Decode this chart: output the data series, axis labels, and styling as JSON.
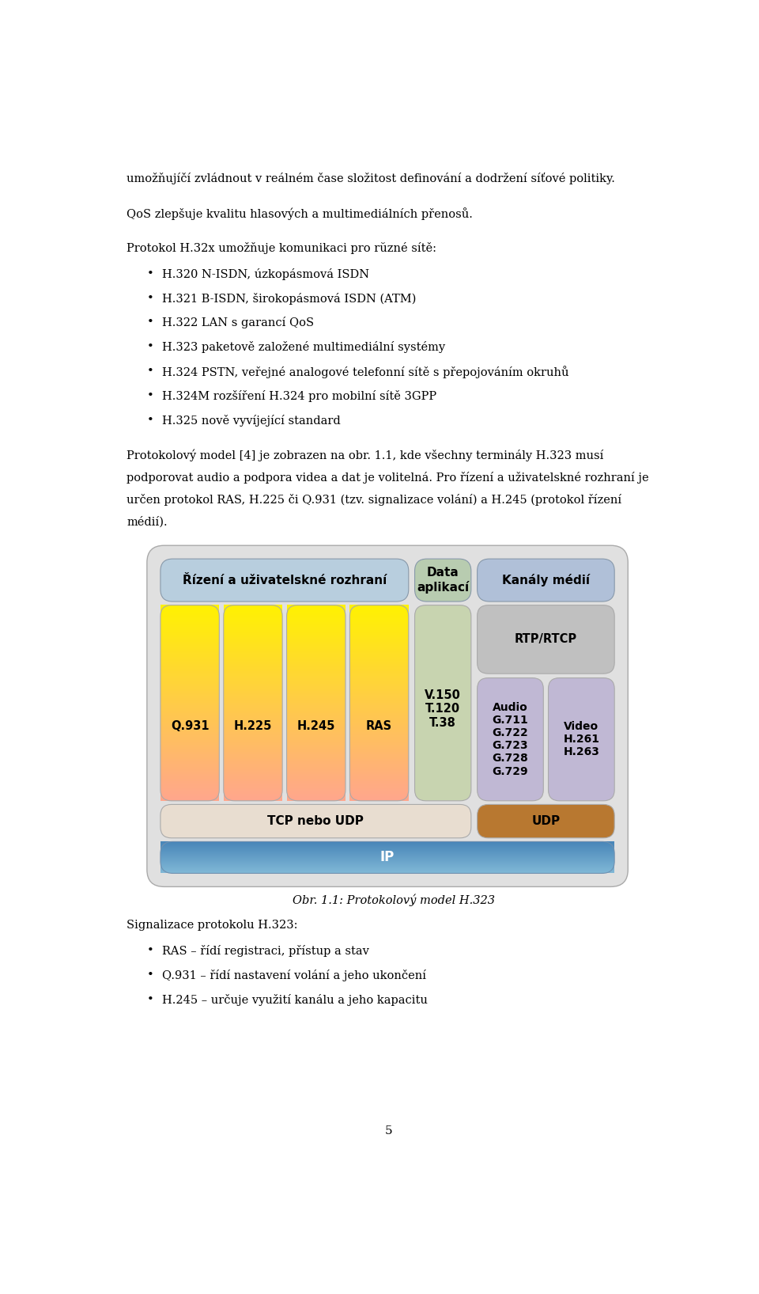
{
  "page_text_top": [
    "umožňujíčí zvládnout v reálném čase složitost definování a dodržení síťové politiky.",
    "QoS zlepšuje kvalitu hlasových a multimediálních přenosů.",
    "Protokol H.32x umožňuje komunikaci pro rŭzné sítě:"
  ],
  "bullet_items": [
    "H.320 N-ISDN, úzkopásmová ISDN",
    "H.321 B-ISDN, širokopásmová ISDN (ATM)",
    "H.322 LAN s garancí QoS",
    "H.323 paketově založené multimediální systémy",
    "H.324 PSTN, veřejné analogové telefonní sítě s přepojováním okruhů",
    "H.324M rozšíření H.324 pro mobilní sítě 3GPP",
    "H.325 nově vyvíjející standard"
  ],
  "para_middle_lines": [
    "Protokolový model [4] je zobrazen na obr. 1.1, kde všechny terminály H.323 musí",
    "podporovat audio a podpora videa a dat je volitelná. Pro řízení a uživatelskné rozhraní je",
    "určen protokol RAS, H.225 či Q.931 (tzv. signalizace volání) a H.245 (protokol řízení",
    "médií)."
  ],
  "caption": "Obr. 1.1: Protokolový model H.323",
  "page_text_bottom_title": "Signalizace protokolu H.323:",
  "page_text_bottom_bullets": [
    "RAS – řídí registraci, přístup a stav",
    "Q.931 – řídí nastavení volání a jeho ukončení",
    "H.245 – určuje využití kanálu a jeho kapacitu"
  ],
  "page_number": "5",
  "bg_color": "#ffffff",
  "text_color": "#000000",
  "diagram": {
    "header_left_bg": "#b8cede",
    "header_left_text": "Řízení a uživatelskné rozhraní",
    "header_mid_bg": "#b8ccb0",
    "header_mid_text": "Data\naplikací",
    "header_right_bg": "#b0c0d8",
    "header_right_text": "Kanály médií",
    "yellow_cols": [
      "Q.931",
      "H.225",
      "H.245",
      "RAS"
    ],
    "data_col_bg": "#c8d4b0",
    "data_col_text": "V.150\nT.120\nT.38",
    "rtp_bg": "#c0c0c0",
    "rtp_text": "RTP/RTCP",
    "audio_bg": "#c0b8d4",
    "audio_text": "Audio\nG.711\nG.722\nG.723\nG.728\nG.729",
    "video_bg": "#c0b8d4",
    "video_text": "Video\nH.261\nH.263",
    "tcp_bg": "#e8ddd0",
    "tcp_text": "TCP nebo UDP",
    "udp_bg": "#b87830",
    "udp_text": "UDP",
    "ip_text": "IP"
  }
}
